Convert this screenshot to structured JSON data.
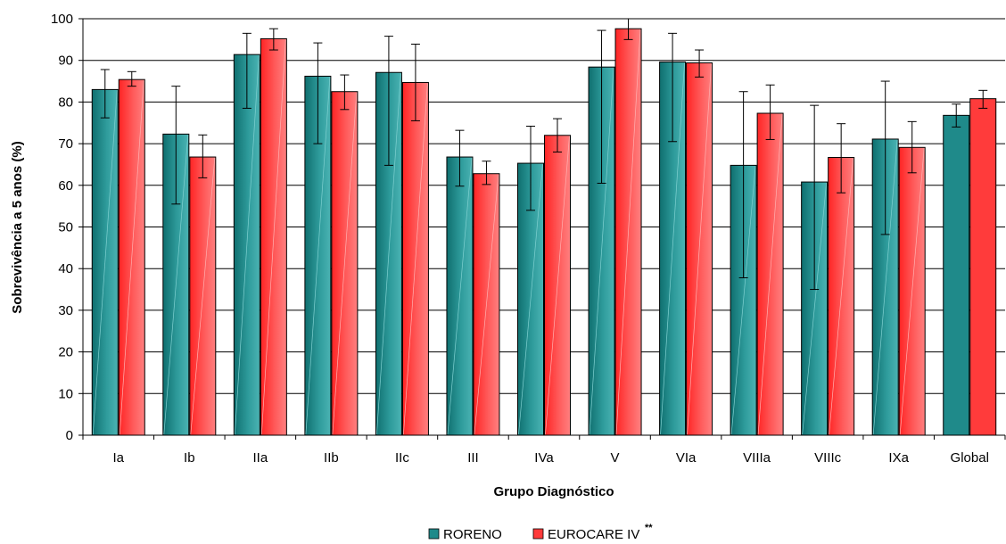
{
  "chart_data": {
    "type": "bar",
    "title": "",
    "xlabel": "Grupo Diagnóstico",
    "ylabel": "Sobrevivência a 5 anos (%)",
    "ylim": [
      0,
      100
    ],
    "yticks": [
      0,
      10,
      20,
      30,
      40,
      50,
      60,
      70,
      80,
      90,
      100
    ],
    "grid": true,
    "legend_position": "bottom-center",
    "categories": [
      "Ia",
      "Ib",
      "IIa",
      "IIb",
      "IIc",
      "III",
      "IVa",
      "V",
      "VIa",
      "VIIIa",
      "VIIIc",
      "IXa",
      "Global"
    ],
    "series": [
      {
        "name": "RORENO",
        "color": "#1f8a8a",
        "values": [
          83,
          72.3,
          91.4,
          86.2,
          87.1,
          66.8,
          65.3,
          88.4,
          89.6,
          64.8,
          60.8,
          71.1,
          76.8
        ],
        "err_low": [
          76.2,
          55.5,
          78.5,
          70,
          64.8,
          59.8,
          54,
          60.5,
          70.5,
          37.8,
          35,
          48.2,
          74
        ],
        "err_high": [
          87.8,
          83.8,
          96.5,
          94.2,
          95.8,
          73.2,
          74.2,
          97.2,
          96.5,
          82.5,
          79.2,
          85,
          79.5
        ]
      },
      {
        "name": "EUROCARE IV",
        "name_superscript": "**",
        "color": "#ff3b3b",
        "values": [
          85.4,
          66.8,
          95.2,
          82.5,
          84.7,
          62.8,
          72,
          97.6,
          89.4,
          77.3,
          66.7,
          69.1,
          80.8
        ],
        "err_low": [
          83.8,
          61.8,
          92.5,
          78.2,
          75.5,
          60.2,
          68,
          95,
          86,
          71,
          58.2,
          63,
          78.5
        ],
        "err_high": [
          87.3,
          72.1,
          97.6,
          86.5,
          93.9,
          65.8,
          76,
          100,
          92.5,
          84.1,
          74.8,
          75.3,
          82.8
        ]
      }
    ]
  }
}
